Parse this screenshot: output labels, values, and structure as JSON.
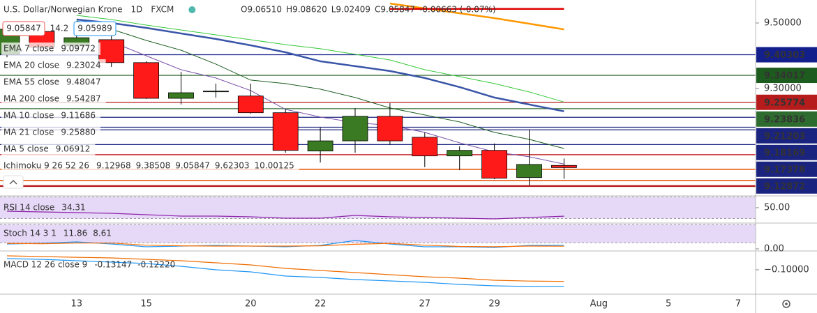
{
  "chart_data": {
    "type": "candlestick",
    "title": "U.S. Dollar/Norwegian Krone",
    "interval": "1D",
    "source": "FXCM",
    "ohlc_labels": [
      "O9.06510",
      "H9.08620",
      "L9.02409",
      "C9.05847",
      "-0.00663 (-0.07%)"
    ],
    "bid": "9.05847",
    "spread": "14.2",
    "ask": "9.05989",
    "categories": [
      null,
      null,
      "13",
      null,
      "15",
      null,
      null,
      "20",
      null,
      "22",
      null,
      null,
      "27",
      null,
      "29",
      null,
      null,
      "Aug",
      null,
      "5",
      null,
      "7"
    ],
    "open": [
      9.4043,
      9.474,
      9.43,
      9.449,
      9.379,
      9.27,
      9.291,
      9.277,
      9.226,
      9.109,
      9.14,
      9.215,
      9.151,
      9.094,
      9.111,
      9.028,
      9.0651,
      null,
      null,
      null,
      null,
      null
    ],
    "high": [
      9.49,
      9.489,
      9.47,
      9.46,
      9.383,
      9.351,
      9.315,
      9.315,
      9.236,
      9.181,
      9.24,
      9.255,
      9.166,
      9.123,
      9.132,
      9.174,
      9.0862,
      null,
      null,
      null,
      null,
      null
    ],
    "low": [
      9.395,
      9.421,
      9.42,
      9.366,
      9.268,
      9.251,
      9.272,
      9.223,
      9.104,
      9.074,
      9.104,
      9.128,
      9.06,
      9.051,
      9.023,
      9.004,
      9.02409,
      null,
      null,
      null,
      null,
      null
    ],
    "close": [
      9.4809,
      9.426,
      9.455,
      9.379,
      9.27,
      9.287,
      9.292,
      9.226,
      9.111,
      9.14,
      9.215,
      9.14,
      9.094,
      9.111,
      9.026,
      9.068,
      9.05847,
      null,
      null,
      null,
      null,
      null
    ],
    "up_color": "#3a7a22",
    "down_color": "#ff1a1a",
    "ylim": [
      8.972,
      9.5702
    ],
    "yticks": [
      {
        "value": 9.5,
        "label": "9.50000"
      },
      {
        "value": 9.3,
        "label": "9.30000"
      }
    ],
    "price_tags": [
      {
        "value": 9.40303,
        "label": "9.40303",
        "color": "#131f8a"
      },
      {
        "value": 9.34017,
        "label": "9.34017",
        "color": "#1e5b1e"
      },
      {
        "value": 9.25774,
        "label": "9.25774",
        "color": "#b71c1c"
      },
      {
        "value": 9.23836,
        "label": "9.23836",
        "color": "#2e6b2e"
      },
      {
        "value": 9.21203,
        "label": "9.21203",
        "color": "#1a237e"
      },
      {
        "value": 9.18169,
        "label": "9.18169",
        "color": "#1a237e"
      },
      {
        "value": 9.17378,
        "label": "9.17378",
        "color": "#1a237e"
      },
      {
        "value": 9.12872,
        "label": "9.12872",
        "color": "#1a237e"
      }
    ],
    "levels": [
      {
        "value": 9.0979,
        "color": "#c62828"
      },
      {
        "value": 9.0532,
        "color": "#e65100"
      },
      {
        "value": 9.0191,
        "color": "#e65100"
      },
      {
        "value": 9.0021,
        "color": "#b71c1c"
      }
    ],
    "indicators": [
      {
        "name": "EMA 7 close",
        "value_labels": [
          "9.09772"
        ],
        "colors": [
          "#2962ff"
        ]
      },
      {
        "name": "EMA 20 close",
        "value_labels": [
          "9.23024"
        ],
        "colors": [
          "#3955a8"
        ],
        "width": 2.5,
        "values": [
          null,
          null,
          9.5106,
          9.5,
          9.4851,
          9.4681,
          9.4511,
          9.4319,
          9.4106,
          9.383,
          9.3681,
          9.3532,
          9.3319,
          9.3043,
          9.2723,
          9.2511,
          9.23024,
          null,
          null,
          null,
          null,
          null
        ]
      },
      {
        "name": "EMA 55 close",
        "value_labels": [
          "9.48047"
        ],
        "colors": [
          "#ff9800"
        ],
        "width": 2.5,
        "values": [
          null,
          null,
          null,
          null,
          null,
          null,
          null,
          null,
          null,
          null,
          null,
          9.5596,
          9.5447,
          9.5298,
          9.5149,
          9.4979,
          9.48047,
          null,
          null,
          null,
          null,
          null
        ]
      },
      {
        "name": "MA 200 close",
        "value_labels": [
          "9.54287"
        ],
        "colors": [
          "#e00000"
        ],
        "width": 2.5,
        "values": [
          null,
          null,
          null,
          null,
          null,
          null,
          null,
          null,
          null,
          null,
          null,
          9.543,
          9.543,
          9.5429,
          9.5429,
          9.5429,
          9.54287,
          null,
          null,
          null,
          null,
          null
        ]
      },
      {
        "name": "MA 10 close",
        "value_labels": [
          "9.11686"
        ],
        "colors": [
          "#1b5e20"
        ],
        "width": 1,
        "values": [
          null,
          null,
          9.5064,
          9.4809,
          9.4468,
          9.417,
          9.3745,
          9.3255,
          9.3149,
          9.2979,
          9.2723,
          9.2404,
          9.2191,
          9.1979,
          9.166,
          9.1447,
          9.11686,
          null,
          null,
          null,
          null,
          null
        ]
      },
      {
        "name": "MA 21 close",
        "value_labels": [
          "9.25880"
        ],
        "colors": [
          "#36c93a"
        ],
        "width": 1,
        "values": [
          null,
          null,
          9.5234,
          9.5106,
          9.4936,
          9.4787,
          9.4638,
          9.4489,
          9.434,
          9.4213,
          9.4043,
          9.3872,
          9.3574,
          9.3362,
          9.3149,
          9.2894,
          9.2588,
          null,
          null,
          null,
          null,
          null
        ]
      },
      {
        "name": "MA 5 close",
        "value_labels": [
          "9.06912"
        ],
        "colors": [
          "#7b52ab"
        ],
        "width": 1,
        "values": [
          null,
          null,
          null,
          9.4426,
          9.4,
          9.3574,
          9.3319,
          9.2936,
          9.2362,
          9.2128,
          9.1957,
          9.1872,
          9.166,
          9.134,
          9.1064,
          9.0915,
          9.06912,
          null,
          null,
          null,
          null,
          null
        ]
      },
      {
        "name": "Ichimoku 9 26 52 26",
        "value_labels": [
          "9.12968",
          "9.38508",
          "9.05847",
          "9.62303",
          "10.00125"
        ],
        "colors": [
          "#2196f3",
          "#8b0000",
          "#43a047",
          "#43a047",
          "#e53935"
        ]
      }
    ],
    "panes": [
      {
        "name": "RSI 14 close",
        "ylim": [
          21.6,
          71.9
        ],
        "yticks": [
          {
            "value": 50,
            "label": "50.00"
          }
        ],
        "band": [
          30,
          70
        ],
        "series": [
          {
            "value_label": "34.31",
            "color": "#8e24aa",
            "values": [
              43.5,
              42.3,
              41.0,
              39.7,
              37.1,
              34.5,
              34.5,
              33.2,
              30.6,
              30.6,
              35.8,
              33.2,
              31.9,
              30.6,
              29.4,
              31.9,
              34.31,
              null,
              null,
              null,
              null,
              null
            ]
          }
        ]
      },
      {
        "name": "Stoch 14 3 1",
        "ylim": [
          -6.9,
          84.6
        ],
        "yticks": [
          {
            "value": 0,
            "label": "0.00"
          }
        ],
        "band": [
          20,
          80
        ],
        "series": [
          {
            "value_label": "11.86",
            "color": "#2196f3",
            "values": [
              16,
              18.3,
              22.9,
              16,
              6.9,
              9.1,
              11.4,
              9.1,
              6.9,
              11.4,
              27.4,
              16,
              6.9,
              6.9,
              4.6,
              11.4,
              11.86,
              null,
              null,
              null,
              null,
              null
            ]
          },
          {
            "value_label": "8.61",
            "color": "#ff6d00",
            "values": [
              18,
              17,
              19,
              19,
              12,
              10,
              9,
              9,
              9,
              10,
              15,
              18,
              12,
              8,
              7,
              9,
              8.61,
              null,
              null,
              null,
              null,
              null
            ]
          }
        ]
      },
      {
        "name": "MACD 12 26 close 9",
        "ylim": [
          -0.1464,
          -0.0642
        ],
        "yticks": [
          {
            "value": -0.1,
            "label": "−0.10000"
          }
        ],
        "series": [
          {
            "value_label": "-0.13147",
            "color": "#2196f3",
            "values": [
              -0.0788,
              -0.0801,
              -0.0828,
              -0.0854,
              -0.0881,
              -0.0934,
              -0.1,
              -0.104,
              -0.1119,
              -0.1146,
              -0.1185,
              -0.1212,
              -0.1238,
              -0.1278,
              -0.1305,
              -0.1318,
              -0.13147,
              null,
              null,
              null,
              null,
              null
            ]
          },
          {
            "value_label": "-0.12220",
            "color": "#ef6c00",
            "values": [
              -0.0735,
              -0.0748,
              -0.0762,
              -0.0775,
              -0.0801,
              -0.0828,
              -0.0868,
              -0.0907,
              -0.0974,
              -0.1013,
              -0.1053,
              -0.1093,
              -0.1132,
              -0.1159,
              -0.1199,
              -0.1215,
              -0.1222,
              null,
              null,
              null,
              null,
              null
            ]
          }
        ]
      }
    ]
  }
}
